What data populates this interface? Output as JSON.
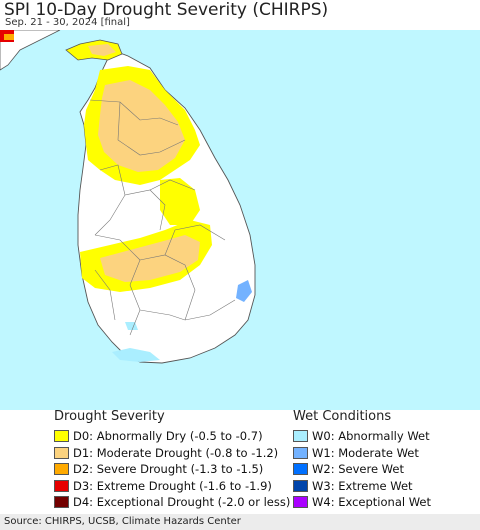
{
  "header": {
    "title": "SPI 10-Day Drought Severity (CHIRPS)",
    "subtitle": "Sep. 21 - 30, 2024 [final]"
  },
  "legend": {
    "drought": {
      "heading": "Drought Severity",
      "items": [
        {
          "label": "D0: Abnormally Dry (-0.5 to -0.7)",
          "color": "#ffff00"
        },
        {
          "label": "D1: Moderate Drought (-0.8 to -1.2)",
          "color": "#fcd37f"
        },
        {
          "label": "D2: Severe Drought (-1.3 to -1.5)",
          "color": "#ffaa00"
        },
        {
          "label": "D3: Extreme Drought (-1.6 to -1.9)",
          "color": "#e60000"
        },
        {
          "label": "D4: Exceptional Drought (-2.0 or less)",
          "color": "#730000"
        }
      ]
    },
    "wet": {
      "heading": "Wet Conditions",
      "items": [
        {
          "label": "W0: Abnormally Wet",
          "color": "#aaeeff"
        },
        {
          "label": "W1: Moderate Wet",
          "color": "#73b2ff"
        },
        {
          "label": "W2: Severe Wet",
          "color": "#0070ff"
        },
        {
          "label": "W3: Extreme Wet",
          "color": "#0044aa"
        },
        {
          "label": "W4: Exceptional Wet",
          "color": "#aa00ff"
        }
      ]
    }
  },
  "colors": {
    "ocean": "#bff7ff",
    "land": "#ffffff",
    "boundary": "#555555"
  },
  "footer": {
    "source": "Source: CHIRPS, UCSB, Climate Hazards Center"
  }
}
